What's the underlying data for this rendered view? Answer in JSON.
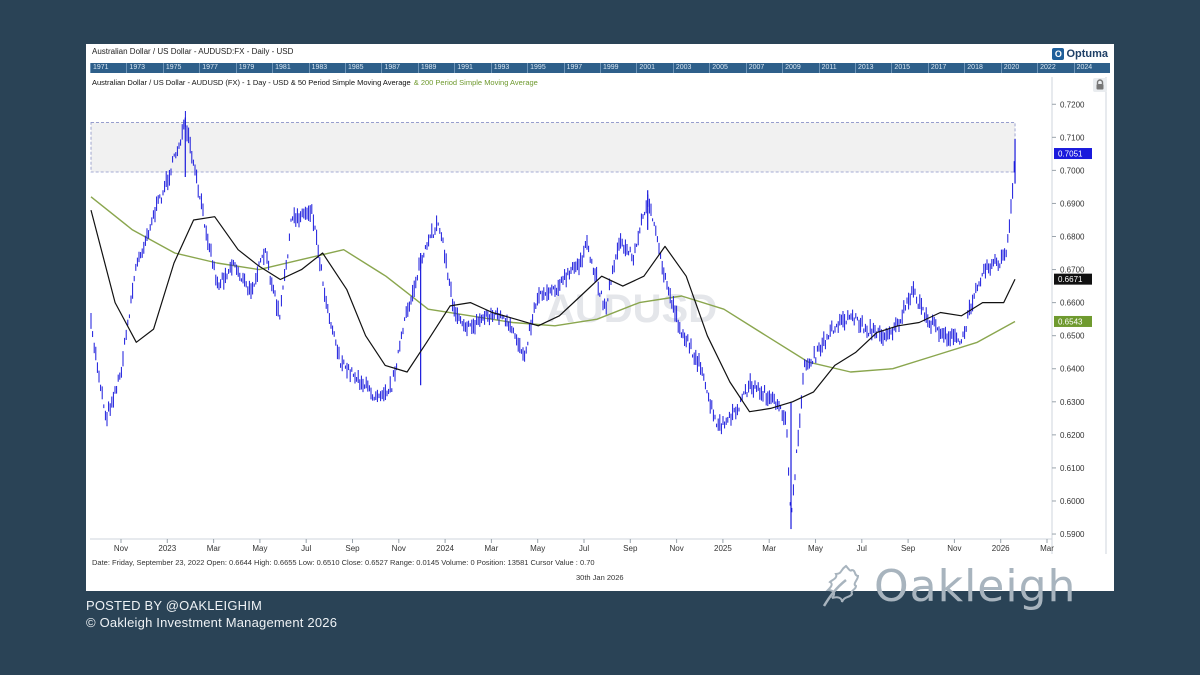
{
  "header": {
    "window_title": "Australian Dollar / US Dollar - AUDUSD:FX - Daily - USD",
    "brand": "Optuma",
    "brand_icon": "optuma-logo-icon",
    "timeline_years": [
      "1971",
      "1973",
      "1975",
      "1977",
      "1979",
      "1981",
      "1983",
      "1985",
      "1987",
      "1989",
      "1991",
      "1993",
      "1995",
      "1997",
      "1999",
      "2001",
      "2003",
      "2005",
      "2007",
      "2009",
      "2011",
      "2013",
      "2015",
      "2017",
      "2018",
      "2020",
      "2022",
      "2024"
    ]
  },
  "chart_data": {
    "type": "line",
    "title": "Australian Dollar / US Dollar - AUDUSD (FX) - 1 Day - USD & 50 Period Simple Moving Average",
    "title_tail": "& 200 Period Simple Moving Average",
    "watermark": "AUDUSD",
    "x_axis": {
      "labels": [
        "Nov",
        "2023",
        "Mar",
        "May",
        "Jul",
        "Sep",
        "Nov",
        "2024",
        "Mar",
        "May",
        "Jul",
        "Sep",
        "Nov",
        "2025",
        "Mar",
        "May",
        "Jul",
        "Sep",
        "Nov",
        "2026",
        "Mar"
      ],
      "range": [
        "2022-09-23",
        "2026-03-20"
      ]
    },
    "y_axis": {
      "side": "right",
      "ticks": [
        "0.5900",
        "0.6000",
        "0.6100",
        "0.6200",
        "0.6300",
        "0.6400",
        "0.6500",
        "0.6600",
        "0.6700",
        "0.6800",
        "0.6900",
        "0.7000",
        "0.7100",
        "0.7200"
      ],
      "ylim": [
        0.5885,
        0.7225
      ]
    },
    "grid": false,
    "resistance_zone": {
      "y_low": 0.6995,
      "y_high": 0.7145,
      "x_start": "2022-09-23",
      "x_end": "2026-01-30"
    },
    "price_labels": [
      {
        "name": "AUDUSD",
        "value": 0.7051,
        "text": "0.7051",
        "color": "#1a1adc"
      },
      {
        "name": "50 Period SMA",
        "value": 0.6671,
        "text": "0.6671",
        "color": "#111111"
      },
      {
        "name": "200 Period SMA",
        "value": 0.6543,
        "text": "0.6543",
        "color": "#6f9a2f"
      }
    ],
    "series": [
      {
        "name": "AUDUSD",
        "style": "ohlc-bars",
        "color": "#1a1adc",
        "x": [
          "2022-09-23",
          "2022-10-13",
          "2022-11-01",
          "2022-11-21",
          "2022-12-13",
          "2023-01-04",
          "2023-01-26",
          "2023-02-20",
          "2023-03-10",
          "2023-03-31",
          "2023-04-21",
          "2023-05-12",
          "2023-05-31",
          "2023-06-16",
          "2023-07-13",
          "2023-08-01",
          "2023-08-21",
          "2023-09-08",
          "2023-10-02",
          "2023-10-26",
          "2023-11-14",
          "2023-12-04",
          "2023-12-28",
          "2024-01-17",
          "2024-02-06",
          "2024-02-28",
          "2024-03-19",
          "2024-04-09",
          "2024-04-19",
          "2024-05-07",
          "2024-06-04",
          "2024-07-02",
          "2024-07-11",
          "2024-08-05",
          "2024-08-22",
          "2024-09-12",
          "2024-09-30",
          "2024-10-22",
          "2024-11-12",
          "2024-12-06",
          "2024-12-31",
          "2025-01-20",
          "2025-02-12",
          "2025-03-06",
          "2025-04-02",
          "2025-04-08",
          "2025-04-25",
          "2025-05-15",
          "2025-06-05",
          "2025-06-27",
          "2025-07-16",
          "2025-08-06",
          "2025-08-25",
          "2025-09-17",
          "2025-10-08",
          "2025-10-30",
          "2025-11-21",
          "2025-12-09",
          "2025-12-24",
          "2026-01-09",
          "2026-01-19",
          "2026-01-27",
          "2026-01-30"
        ],
        "y": [
          0.6527,
          0.625,
          0.638,
          0.67,
          0.685,
          0.698,
          0.714,
          0.685,
          0.665,
          0.672,
          0.663,
          0.675,
          0.655,
          0.685,
          0.688,
          0.66,
          0.641,
          0.638,
          0.632,
          0.634,
          0.655,
          0.672,
          0.685,
          0.658,
          0.652,
          0.656,
          0.656,
          0.649,
          0.644,
          0.662,
          0.665,
          0.672,
          0.677,
          0.658,
          0.678,
          0.674,
          0.692,
          0.668,
          0.652,
          0.642,
          0.622,
          0.625,
          0.635,
          0.632,
          0.625,
          0.593,
          0.64,
          0.645,
          0.653,
          0.656,
          0.652,
          0.65,
          0.652,
          0.663,
          0.654,
          0.65,
          0.648,
          0.665,
          0.671,
          0.672,
          0.675,
          0.693,
          0.7051
        ]
      },
      {
        "name": "50 Period SMA",
        "style": "line",
        "color": "#111111",
        "x": [
          "2022-09-23",
          "2022-10-25",
          "2022-11-22",
          "2022-12-15",
          "2023-01-11",
          "2023-02-06",
          "2023-03-06",
          "2023-04-06",
          "2023-05-04",
          "2023-06-01",
          "2023-06-29",
          "2023-07-27",
          "2023-08-28",
          "2023-09-22",
          "2023-10-18",
          "2023-11-16",
          "2023-12-12",
          "2024-01-12",
          "2024-02-08",
          "2024-03-08",
          "2024-04-08",
          "2024-05-08",
          "2024-06-05",
          "2024-07-03",
          "2024-07-31",
          "2024-08-28",
          "2024-09-25",
          "2024-10-23",
          "2024-11-20",
          "2024-12-18",
          "2025-01-17",
          "2025-02-12",
          "2025-03-12",
          "2025-04-10",
          "2025-05-08",
          "2025-06-05",
          "2025-07-03",
          "2025-07-31",
          "2025-08-28",
          "2025-09-25",
          "2025-10-23",
          "2025-11-20",
          "2025-12-18",
          "2026-01-15",
          "2026-01-30"
        ],
        "y": [
          0.688,
          0.66,
          0.648,
          0.652,
          0.672,
          0.685,
          0.686,
          0.676,
          0.671,
          0.667,
          0.67,
          0.675,
          0.664,
          0.65,
          0.641,
          0.639,
          0.648,
          0.659,
          0.66,
          0.657,
          0.655,
          0.653,
          0.656,
          0.662,
          0.668,
          0.665,
          0.668,
          0.677,
          0.668,
          0.65,
          0.636,
          0.627,
          0.628,
          0.63,
          0.633,
          0.641,
          0.645,
          0.651,
          0.653,
          0.654,
          0.657,
          0.656,
          0.66,
          0.66,
          0.6671
        ]
      },
      {
        "name": "200 Period SMA",
        "style": "line",
        "color": "#8aa64e",
        "x": [
          "2022-09-23",
          "2022-11-17",
          "2023-01-12",
          "2023-03-09",
          "2023-05-04",
          "2023-06-29",
          "2023-08-24",
          "2023-10-19",
          "2023-12-14",
          "2024-02-08",
          "2024-04-04",
          "2024-05-30",
          "2024-07-25",
          "2024-09-19",
          "2024-11-14",
          "2025-01-09",
          "2025-03-06",
          "2025-05-01",
          "2025-06-26",
          "2025-08-21",
          "2025-10-16",
          "2025-12-11",
          "2026-01-30"
        ],
        "y": [
          0.692,
          0.682,
          0.675,
          0.672,
          0.67,
          0.673,
          0.676,
          0.668,
          0.658,
          0.656,
          0.654,
          0.653,
          0.655,
          0.66,
          0.662,
          0.658,
          0.65,
          0.642,
          0.639,
          0.64,
          0.644,
          0.648,
          0.6543
        ]
      }
    ]
  },
  "status": {
    "line": "Date: Friday, September 23, 2022 Open: 0.6644 High: 0.6655 Low: 0.6510 Close: 0.6527 Range: 0.0145 Volume: 0 Position: 13581 Cursor Value : 0.70",
    "cursor_date": "30th Jan 2026",
    "lock_icon": "lock-icon"
  },
  "footer": {
    "posted_by": "POSTED BY @OAKLEIGHIM",
    "copyright": "© Oakleigh Investment Management 2026",
    "logo_text": "Oakleigh",
    "logo_icon": "oak-leaf-icon"
  }
}
